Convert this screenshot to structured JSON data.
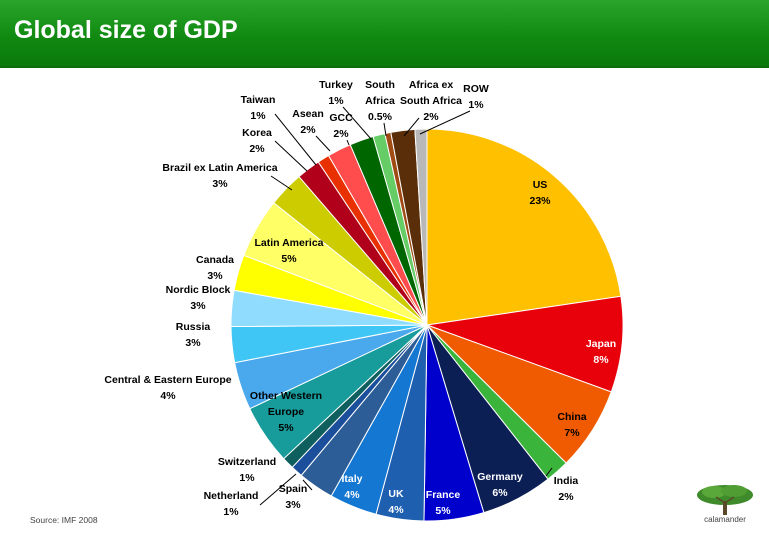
{
  "header": {
    "title": "Global size of GDP"
  },
  "footer": {
    "source": "Source:  IMF 2008",
    "logo_text": "calamander"
  },
  "chart_data": {
    "type": "pie",
    "title": "Global size of GDP",
    "slices": [
      {
        "label": "US",
        "value": 23,
        "display": "23%",
        "color": "#ffc000"
      },
      {
        "label": "Japan",
        "value": 8,
        "display": "8%",
        "color": "#e8000b"
      },
      {
        "label": "China",
        "value": 7,
        "display": "7%",
        "color": "#f05a00"
      },
      {
        "label": "India",
        "value": 2,
        "display": "2%",
        "color": "#3ab43a"
      },
      {
        "label": "Germany",
        "value": 6,
        "display": "6%",
        "color": "#0b1f55"
      },
      {
        "label": "France",
        "value": 5,
        "display": "5%",
        "color": "#0000cd"
      },
      {
        "label": "UK",
        "value": 4,
        "display": "4%",
        "color": "#1f5fb0"
      },
      {
        "label": "Italy",
        "value": 4,
        "display": "4%",
        "color": "#1477d2"
      },
      {
        "label": "Spain",
        "value": 3,
        "display": "3%",
        "color": "#2c5d96"
      },
      {
        "label": "Netherland",
        "value": 1,
        "display": "1%",
        "color": "#1b4f9c"
      },
      {
        "label": "Switzerland",
        "value": 1,
        "display": "1%",
        "color": "#0f5f5f"
      },
      {
        "label": "Other Western Europe",
        "value": 5,
        "display": "5%",
        "color": "#179b9b"
      },
      {
        "label": "Central & Eastern Europe",
        "value": 4,
        "display": "4%",
        "color": "#4aa8ec"
      },
      {
        "label": "Russia",
        "value": 3,
        "display": "3%",
        "color": "#3fc6f5"
      },
      {
        "label": "Nordic Block",
        "value": 3,
        "display": "3%",
        "color": "#8fdcff"
      },
      {
        "label": "Canada",
        "value": 3,
        "display": "3%",
        "color": "#ffff00"
      },
      {
        "label": "Latin America",
        "value": 5,
        "display": "5%",
        "color": "#ffff66"
      },
      {
        "label": "Brazil ex Latin America",
        "value": 3,
        "display": "3%",
        "color": "#cccc00"
      },
      {
        "label": "Korea",
        "value": 2,
        "display": "2%",
        "color": "#b0001a"
      },
      {
        "label": "Taiwan",
        "value": 1,
        "display": "1%",
        "color": "#e83000"
      },
      {
        "label": "Asean",
        "value": 2,
        "display": "2%",
        "color": "#ff4d4d"
      },
      {
        "label": "GCC",
        "value": 2,
        "display": "2%",
        "color": "#006600"
      },
      {
        "label": "Turkey",
        "value": 1,
        "display": "1%",
        "color": "#66cc66"
      },
      {
        "label": "South Africa",
        "value": 0.5,
        "display": "0.5%",
        "color": "#a04a14"
      },
      {
        "label": "Africa ex South Africa",
        "value": 2,
        "display": "2%",
        "color": "#5a2e08"
      },
      {
        "label": "ROW",
        "value": 1,
        "display": "1%",
        "color": "#b8b8b8"
      }
    ]
  }
}
